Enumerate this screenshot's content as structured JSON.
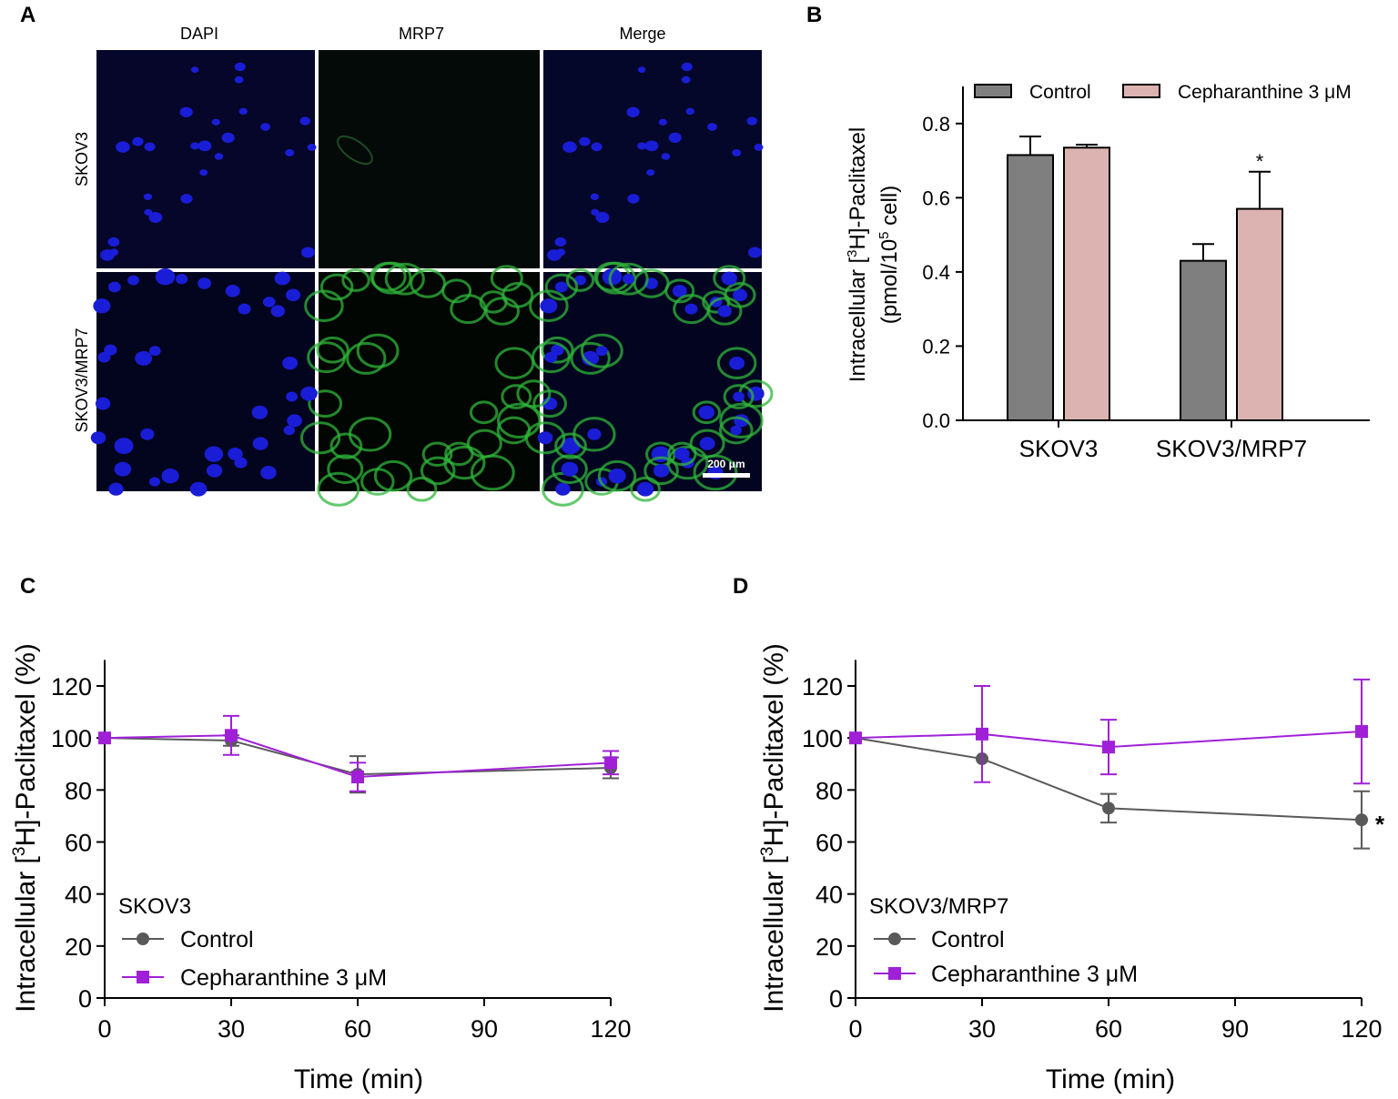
{
  "panel_letters": {
    "a": "A",
    "b": "B",
    "c": "C",
    "d": "D"
  },
  "panel_a": {
    "columns": [
      "DAPI",
      "MRP7",
      "Merge"
    ],
    "rows": [
      "SKOV3",
      "SKOV3/MRP7"
    ],
    "scale_bar": "200 μm",
    "colors": {
      "dapi": "#1a1dd6",
      "mrp7": "#2fb53a",
      "background": "#05062a"
    }
  },
  "chart_data": [
    {
      "panel": "B",
      "type": "bar",
      "title": "",
      "ylabel_line1_pre": "Intracellular [",
      "ylabel_line1_sup": "3",
      "ylabel_line1_post": "H]-Paclitaxel",
      "ylabel_line2_pre": "(pmol/10",
      "ylabel_line2_sup": "5",
      "ylabel_line2_post": " cell)",
      "xlabel": "",
      "categories": [
        "SKOV3",
        "SKOV3/MRP7"
      ],
      "ylim": [
        0,
        0.9
      ],
      "yticks": [
        0.0,
        0.2,
        0.4,
        0.6,
        0.8
      ],
      "ytick_labels": [
        "0.0",
        "0.2",
        "0.4",
        "0.6",
        "0.8"
      ],
      "series": [
        {
          "name": "Control",
          "color": "#7f7f7f",
          "values": [
            0.715,
            0.43
          ],
          "errors": [
            0.05,
            0.045
          ]
        },
        {
          "name": "Cepharanthine 3 μM",
          "color": "#dcb3b0",
          "values": [
            0.735,
            0.57
          ],
          "errors": [
            0.008,
            0.1
          ]
        }
      ],
      "annotations": [
        {
          "category": "SKOV3/MRP7",
          "series": "Cepharanthine 3 μM",
          "text": "*"
        }
      ],
      "legend": "top"
    },
    {
      "panel": "C",
      "type": "line",
      "inset_title": "SKOV3",
      "ylabel_pre": "Intracellular [",
      "ylabel_sup": "3",
      "ylabel_post": "H]-Paclitaxel (%)",
      "xlabel": "Time (min)",
      "xlim": [
        0,
        120
      ],
      "ylim": [
        0,
        130
      ],
      "xticks": [
        0,
        30,
        60,
        90,
        120
      ],
      "xtick_labels": [
        "0",
        "30",
        "60",
        "90",
        "120"
      ],
      "yticks": [
        0,
        20,
        40,
        60,
        80,
        100,
        120
      ],
      "ytick_labels": [
        "0",
        "20",
        "40",
        "60",
        "80",
        "100",
        "120"
      ],
      "series": [
        {
          "name": "Control",
          "color": "#595959",
          "marker": "circle",
          "x": [
            0,
            30,
            60,
            120
          ],
          "values": [
            100,
            99,
            86,
            88.5
          ],
          "errors": [
            0,
            2,
            7,
            4
          ]
        },
        {
          "name": "Cepharanthine 3 μM",
          "color": "#a020d8",
          "marker": "square",
          "x": [
            0,
            30,
            60,
            120
          ],
          "values": [
            100,
            101,
            85,
            90.5
          ],
          "errors": [
            0,
            7.5,
            5.5,
            4.5
          ]
        }
      ],
      "annotations": [],
      "legend": "bottom-left"
    },
    {
      "panel": "D",
      "type": "line",
      "inset_title": "SKOV3/MRP7",
      "ylabel_pre": "Intracellular [",
      "ylabel_sup": "3",
      "ylabel_post": "H]-Paclitaxel (%)",
      "xlabel": "Time (min)",
      "xlim": [
        0,
        120
      ],
      "ylim": [
        0,
        130
      ],
      "xticks": [
        0,
        30,
        60,
        90,
        120
      ],
      "xtick_labels": [
        "0",
        "30",
        "60",
        "90",
        "120"
      ],
      "yticks": [
        0,
        20,
        40,
        60,
        80,
        100,
        120
      ],
      "ytick_labels": [
        "0",
        "20",
        "40",
        "60",
        "80",
        "100",
        "120"
      ],
      "series": [
        {
          "name": "Control",
          "color": "#595959",
          "marker": "circle",
          "x": [
            0,
            30,
            60,
            120
          ],
          "values": [
            100,
            92,
            73,
            68.5
          ],
          "errors": [
            0,
            0,
            5.5,
            11
          ]
        },
        {
          "name": "Cepharanthine 3 μM",
          "color": "#a020d8",
          "marker": "square",
          "x": [
            0,
            30,
            60,
            120
          ],
          "values": [
            100,
            101.5,
            96.5,
            102.5
          ],
          "errors": [
            0,
            18.5,
            10.5,
            20
          ]
        }
      ],
      "annotations": [
        {
          "x": 120,
          "series": "Control",
          "text": "*"
        }
      ],
      "legend": "bottom-left"
    }
  ]
}
